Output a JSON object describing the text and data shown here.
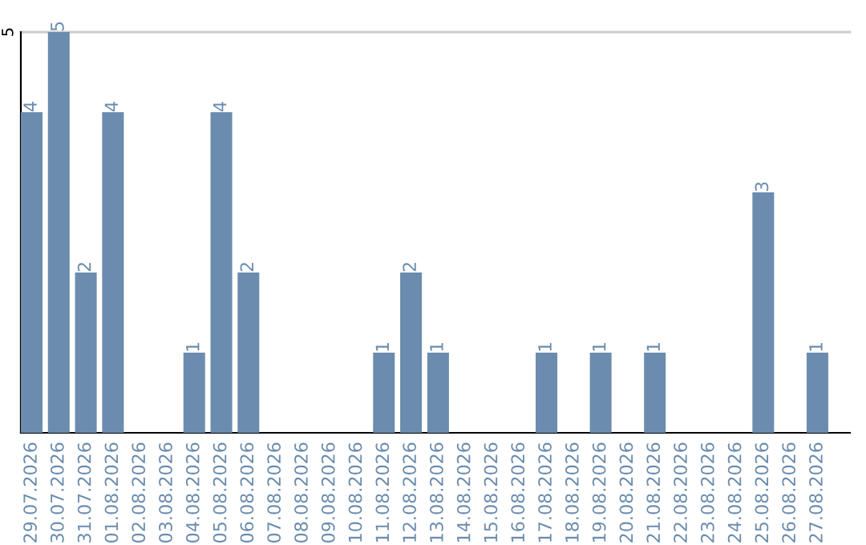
{
  "chart_data": {
    "type": "bar",
    "categories": [
      "29.07.2026",
      "30.07.2026",
      "31.07.2026",
      "01.08.2026",
      "02.08.2026",
      "03.08.2026",
      "04.08.2026",
      "05.08.2026",
      "06.08.2026",
      "07.08.2026",
      "08.08.2026",
      "09.08.2026",
      "10.08.2026",
      "11.08.2026",
      "12.08.2026",
      "13.08.2026",
      "14.08.2026",
      "15.08.2026",
      "16.08.2026",
      "17.08.2026",
      "18.08.2026",
      "19.08.2026",
      "20.08.2026",
      "21.08.2026",
      "22.08.2026",
      "23.08.2026",
      "24.08.2026",
      "25.08.2026",
      "26.08.2026",
      "27.08.2026"
    ],
    "values": [
      4,
      5,
      2,
      4,
      0,
      0,
      1,
      4,
      2,
      0,
      0,
      0,
      0,
      1,
      2,
      1,
      0,
      0,
      0,
      1,
      0,
      1,
      0,
      1,
      0,
      0,
      0,
      3,
      0,
      1
    ],
    "value_labels": [
      "4",
      "5",
      "2",
      "4",
      null,
      null,
      "1",
      "4",
      "2",
      null,
      null,
      null,
      null,
      "1",
      "2",
      "1",
      null,
      null,
      null,
      "1",
      null,
      "1",
      null,
      "1",
      null,
      null,
      null,
      "3",
      null,
      "1"
    ],
    "color": "#6b8cae",
    "ylim": [
      0,
      5
    ],
    "yticks": [
      5
    ],
    "ref_lines": [
      {
        "axis": "y",
        "value": 5,
        "color": "#cccccc"
      }
    ],
    "legend": false
  }
}
